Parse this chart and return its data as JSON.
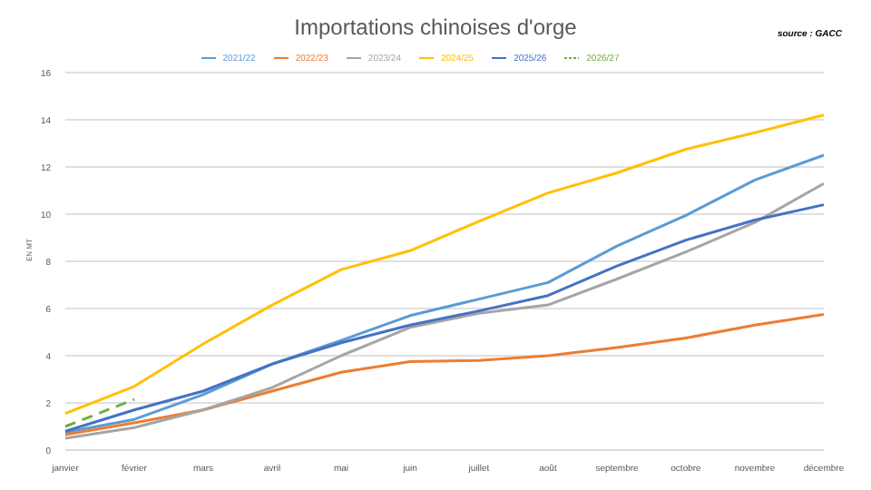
{
  "chart_data": {
    "type": "line",
    "title": "Importations chinoises d'orge",
    "ylabel": "EN MT",
    "annotations": [
      "source : GACC"
    ],
    "categories": [
      "janvier",
      "février",
      "mars",
      "avril",
      "mai",
      "juin",
      "juillet",
      "août",
      "septembre",
      "octobre",
      "novembre",
      "décembre"
    ],
    "series": [
      {
        "name": "2021/22",
        "color": "#5b9bd5",
        "values": [
          0.75,
          1.3,
          2.35,
          3.65,
          4.65,
          5.7,
          6.4,
          7.1,
          8.65,
          9.95,
          11.45,
          12.5
        ]
      },
      {
        "name": "2022/23",
        "color": "#ed7d31",
        "values": [
          0.65,
          1.15,
          1.7,
          2.5,
          3.3,
          3.75,
          3.8,
          4.0,
          4.35,
          4.75,
          5.3,
          5.75
        ]
      },
      {
        "name": "2023/24",
        "color": "#a5a5a5",
        "values": [
          0.5,
          0.95,
          1.7,
          2.65,
          4.0,
          5.2,
          5.8,
          6.15,
          7.25,
          8.4,
          9.65,
          11.3
        ]
      },
      {
        "name": "2024/25",
        "color": "#ffc000",
        "values": [
          1.55,
          2.7,
          4.5,
          6.15,
          7.65,
          8.45,
          9.7,
          10.9,
          11.75,
          12.75,
          13.45,
          14.2
        ]
      },
      {
        "name": "2025/26",
        "color": "#4472c4",
        "values": [
          0.8,
          1.7,
          2.5,
          3.65,
          4.55,
          5.3,
          5.9,
          6.55,
          7.8,
          8.9,
          9.75,
          10.4
        ]
      },
      {
        "name": "2026/27",
        "color": "#70ad47",
        "line_style": "dashed",
        "values": [
          1.0,
          2.15,
          null,
          null,
          null,
          null,
          null,
          null,
          null,
          null,
          null,
          null
        ]
      }
    ],
    "ylim": [
      0,
      16
    ],
    "yticks": [
      0,
      2,
      4,
      6,
      8,
      10,
      12,
      14,
      16
    ],
    "grid": "y",
    "legend": "top",
    "marker": "none",
    "line_style": "solid"
  }
}
